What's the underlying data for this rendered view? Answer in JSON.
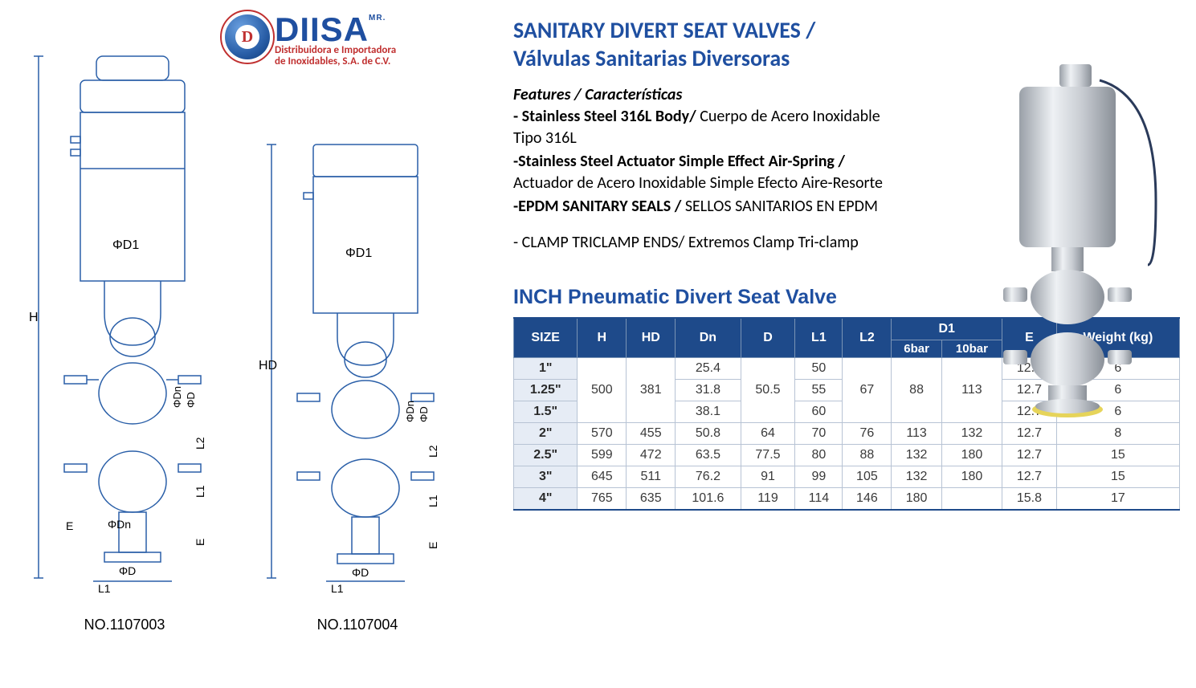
{
  "logo": {
    "badge_letter": "D",
    "main": "DIISA",
    "mr": "MR.",
    "sub1": "Distribuidora e Importadora",
    "sub2": "de Inoxidables, S.A. de C.V.",
    "main_color": "#1f4fa0",
    "sub_color": "#c03030"
  },
  "drawings": {
    "left_label": "NO.1107003",
    "right_label": "NO.1107004",
    "dim_labels": {
      "phiD1": "ΦD1",
      "phiD": "ΦD",
      "phiDn": "ΦDn",
      "H": "H",
      "HD": "HD",
      "L1": "L1",
      "L2": "L2",
      "E": "E"
    },
    "line_color": "#2a5fa8"
  },
  "title": {
    "line1": "SANITARY DIVERT SEAT VALVES /",
    "line2": "Válvulas Sanitarias Diversoras",
    "color": "#1f4fa0",
    "fontsize": 28
  },
  "features": {
    "heading": "Features / Características",
    "items": [
      {
        "bold": "- Stainless Steel 316L Body/",
        "rest": " Cuerpo de Acero Inoxidable Tipo 316L"
      },
      {
        "bold": "-Stainless Steel Actuator Simple Effect Air-Spring /",
        "rest": " Actuador de Acero Inoxidable Simple Efecto Aire-Resorte"
      },
      {
        "bold": "-EPDM SANITARY SEALS /",
        "rest": " SELLOS SANITARIOS EN EPDM"
      }
    ],
    "clamp": "- CLAMP TRICLAMP ENDS/ Extremos Clamp Tri-clamp"
  },
  "table": {
    "title": "INCH Pneumatic Divert Seat Valve",
    "title_color": "#1f4fa0",
    "header_bg": "#1e4a8a",
    "header_fg": "#ffffff",
    "size_col_bg": "#e6ecf5",
    "border_color": "#b7c3d4",
    "columns_top": [
      "SIZE",
      "H",
      "HD",
      "Dn",
      "D",
      "L1",
      "L2",
      "D1",
      "E",
      "Weight (kg)"
    ],
    "d1_sub": [
      "6bar",
      "10bar"
    ],
    "rows": [
      {
        "size": "1\"",
        "H": "",
        "HD": "",
        "Dn": "25.4",
        "D": "",
        "L1": "50",
        "L2": "",
        "D1_6": "",
        "D1_10": "",
        "E": "12.7",
        "W": "6",
        "group": 0
      },
      {
        "size": "1.25\"",
        "H": "500",
        "HD": "381",
        "Dn": "31.8",
        "D": "50.5",
        "L1": "55",
        "L2": "67",
        "D1_6": "88",
        "D1_10": "113",
        "E": "12.7",
        "W": "6",
        "group": 0
      },
      {
        "size": "1.5\"",
        "H": "",
        "HD": "",
        "Dn": "38.1",
        "D": "",
        "L1": "60",
        "L2": "",
        "D1_6": "",
        "D1_10": "",
        "E": "12.7",
        "W": "6",
        "group": 0
      },
      {
        "size": "2\"",
        "H": "570",
        "HD": "455",
        "Dn": "50.8",
        "D": "64",
        "L1": "70",
        "L2": "76",
        "D1_6": "113",
        "D1_10": "132",
        "E": "12.7",
        "W": "8",
        "group": 1
      },
      {
        "size": "2.5\"",
        "H": "599",
        "HD": "472",
        "Dn": "63.5",
        "D": "77.5",
        "L1": "80",
        "L2": "88",
        "D1_6": "132",
        "D1_10": "180",
        "E": "12.7",
        "W": "15",
        "group": 2
      },
      {
        "size": "3\"",
        "H": "645",
        "HD": "511",
        "Dn": "76.2",
        "D": "91",
        "L1": "99",
        "L2": "105",
        "D1_6": "132",
        "D1_10": "180",
        "E": "12.7",
        "W": "15",
        "group": 3
      },
      {
        "size": "4\"",
        "H": "765",
        "HD": "635",
        "Dn": "101.6",
        "D": "119",
        "L1": "114",
        "L2": "146",
        "D1_6": "180",
        "D1_10": "",
        "E": "15.8",
        "W": "17",
        "group": 4
      }
    ],
    "merged_group0": {
      "H": "500",
      "HD": "381",
      "D": "50.5",
      "L2": "67",
      "D1_6": "88",
      "D1_10": "113"
    }
  },
  "product_render": {
    "body_color": "#c8ccd2",
    "body_highlight": "#eef1f4",
    "ring_color": "#e6d45a",
    "cable_color": "#2a3a5a"
  }
}
